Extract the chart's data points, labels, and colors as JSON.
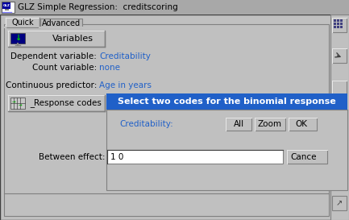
{
  "title": "GLZ Simple Regression:  creditscoring",
  "tab1": "Quick",
  "tab2": "Advanced",
  "btn_variables": "Variables",
  "label_dep": "Dependent variable:",
  "val_dep": "Creditability",
  "label_count": "Count variable:",
  "val_count": "none",
  "label_cont": "Continuous predictor:",
  "val_cont": "Age in years",
  "btn_response": "Response codes",
  "banner_text": "Select two codes for the binomial response",
  "label_cred": "Creditability:",
  "btn_all": "All",
  "btn_zoom": "Zoom",
  "btn_ok": "OK",
  "label_between": "Between effect:",
  "field_val": "1 0",
  "btn_cancel": "Cance",
  "bg_color": "#c0c0c0",
  "titlebar_bg": "#a0a0a0",
  "titlebar_text": "#000000",
  "banner_color": "#2060c8",
  "banner_text_color": "#ffffff",
  "blue_text_color": "#2060c8",
  "white": "#ffffff",
  "dark_border": "#808080",
  "darker_border": "#404040",
  "black": "#000000",
  "light_highlight": "#e8e8e8",
  "tab_inactive": "#b8b8b8"
}
